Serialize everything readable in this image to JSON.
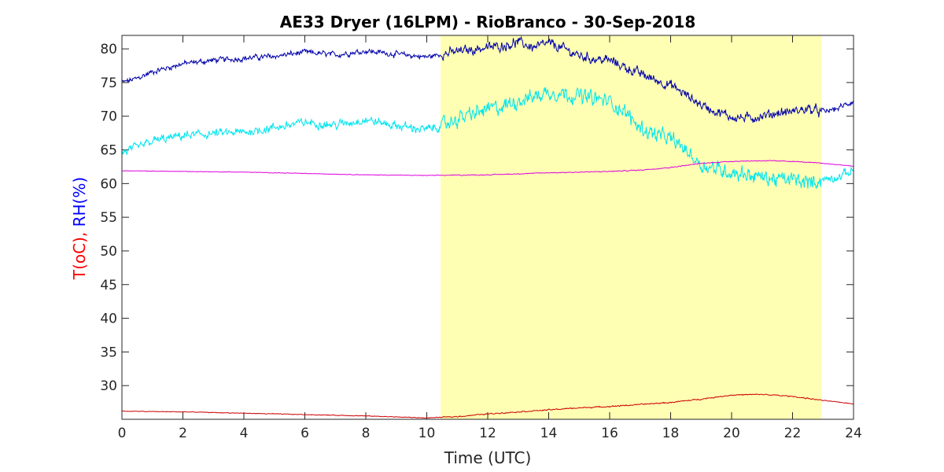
{
  "chart_data": {
    "type": "line",
    "title": "AE33 Dryer (16LPM)  - RioBranco - 30-Sep-2018",
    "xlabel": "Time (UTC)",
    "ylabel_parts": [
      {
        "text": "T(oC),",
        "color": "#ff0000"
      },
      {
        "text": " RH(%)",
        "color": "#0000ff"
      }
    ],
    "xlim": [
      0,
      24
    ],
    "ylim": [
      25,
      82
    ],
    "x_ticks": [
      0,
      2,
      4,
      6,
      8,
      10,
      12,
      14,
      16,
      18,
      20,
      22,
      24
    ],
    "y_ticks": [
      30,
      35,
      40,
      45,
      50,
      55,
      60,
      65,
      70,
      75,
      80
    ],
    "daylight_band": {
      "x_start": 10.45,
      "x_end": 22.95,
      "color": "#ffffb4"
    },
    "series": [
      {
        "key": "rh_inlet",
        "color": "#0000aa",
        "noise": 0.7,
        "x": [
          0,
          0.5,
          1,
          2,
          3,
          4,
          5,
          6,
          7,
          8,
          9,
          10,
          10.5,
          11,
          12,
          12.5,
          13,
          13.5,
          14,
          14.5,
          15,
          15.5,
          16,
          16.5,
          17,
          17.5,
          18,
          18.5,
          19,
          19.5,
          20,
          20.5,
          21,
          21.5,
          22,
          22.5,
          23,
          23.5,
          24
        ],
        "y": [
          75.0,
          75.6,
          76.6,
          77.8,
          78.3,
          78.6,
          78.9,
          79.5,
          79.1,
          79.7,
          79.2,
          78.8,
          79.2,
          79.6,
          80.2,
          80.5,
          81.0,
          80.2,
          80.8,
          80.0,
          79.0,
          78.5,
          78.3,
          77.3,
          76.3,
          75.4,
          74.6,
          73.2,
          71.7,
          70.7,
          69.9,
          69.7,
          70.0,
          70.5,
          70.7,
          71.1,
          70.6,
          71.2,
          72.2
        ]
      },
      {
        "key": "rh_outlet",
        "color": "#00e5ee",
        "noise": 1.1,
        "x": [
          0,
          0.5,
          1,
          2,
          3,
          4,
          5,
          6,
          7,
          8,
          9,
          10,
          10.5,
          11,
          12,
          12.5,
          13,
          13.5,
          14,
          14.5,
          15,
          15.5,
          16,
          16.5,
          17,
          17.5,
          18,
          18.5,
          19,
          19.5,
          20,
          20.5,
          21,
          21.5,
          22,
          22.5,
          23,
          23.5,
          24
        ],
        "y": [
          64.6,
          65.3,
          66.3,
          67.1,
          67.4,
          67.6,
          68.3,
          69.1,
          68.7,
          69.5,
          68.6,
          68.0,
          68.6,
          69.6,
          71.0,
          71.4,
          72.4,
          72.9,
          73.6,
          73.4,
          73.0,
          72.6,
          72.2,
          70.6,
          68.3,
          67.3,
          66.6,
          65.0,
          62.8,
          62.2,
          61.7,
          61.4,
          60.9,
          60.6,
          60.6,
          60.1,
          60.6,
          61.0,
          62.0
        ]
      },
      {
        "key": "temp_aux",
        "color": "#dd00dd",
        "noise": 0.06,
        "x": [
          0,
          2,
          4,
          6,
          8,
          10,
          12,
          14,
          16,
          17,
          18,
          19,
          20,
          21,
          22,
          23,
          24
        ],
        "y": [
          61.9,
          61.8,
          61.7,
          61.5,
          61.3,
          61.2,
          61.3,
          61.6,
          61.8,
          62.0,
          62.4,
          63.0,
          63.3,
          63.4,
          63.3,
          63.0,
          62.6
        ]
      },
      {
        "key": "temp",
        "color": "#cc0000",
        "noise": 0.08,
        "x": [
          0,
          2,
          4,
          6,
          8,
          10,
          11,
          12,
          14,
          15,
          16,
          17,
          18,
          19,
          20,
          21,
          22,
          23,
          24
        ],
        "y": [
          26.2,
          26.1,
          25.9,
          25.7,
          25.5,
          25.2,
          25.4,
          25.8,
          26.4,
          26.7,
          26.9,
          27.2,
          27.5,
          28.0,
          28.6,
          28.7,
          28.4,
          27.8,
          27.3
        ]
      }
    ]
  }
}
